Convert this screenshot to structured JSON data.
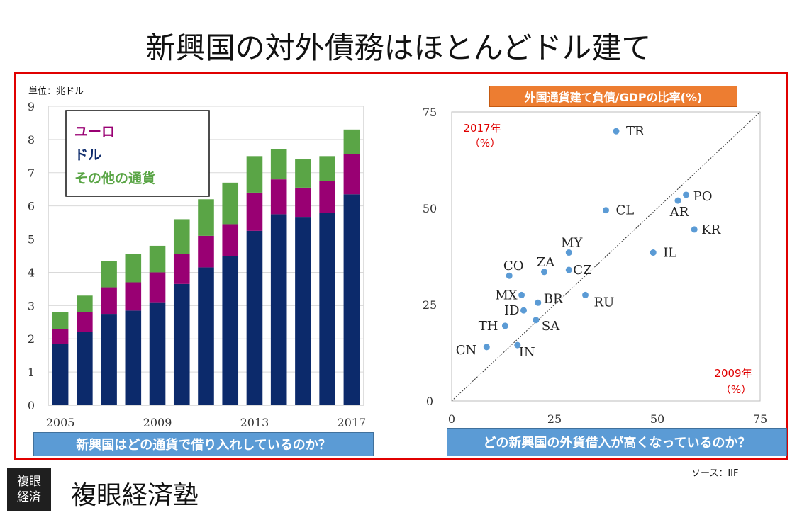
{
  "title": "新興国の対外債務はほとんどドル建て",
  "unit_label": "単位：兆ドル",
  "source": "ソース：IIF",
  "logo": {
    "box_line1": "複眼",
    "box_line2": "経済",
    "text": "複眼経済塾"
  },
  "colors": {
    "frame": "#e00000",
    "euro": "#990073",
    "dollar": "#0c2a6b",
    "other": "#5aa546",
    "point": "#5b9bd5",
    "question_box": "#5b9bd5",
    "ratio_box": "#ed7d31"
  },
  "chart_data": [
    {
      "type": "bar",
      "stacked": true,
      "categories": [
        "2005",
        "2006",
        "2007",
        "2008",
        "2009",
        "2010",
        "2011",
        "2012",
        "2013",
        "2014",
        "2015",
        "2016",
        "2017"
      ],
      "x_tick_labels": [
        "2005",
        "2009",
        "2013",
        "2017"
      ],
      "ylim": [
        0,
        9
      ],
      "y_ticks": [
        0,
        1,
        2,
        3,
        4,
        5,
        6,
        7,
        8,
        9
      ],
      "legend": [
        "ユーロ",
        "ドル",
        "その他の通貨"
      ],
      "legend_position": "top-left",
      "series": [
        {
          "name": "ドル",
          "values": [
            1.85,
            2.2,
            2.75,
            2.85,
            3.1,
            3.65,
            4.15,
            4.5,
            5.25,
            5.75,
            5.65,
            5.8,
            6.35
          ]
        },
        {
          "name": "ユーロ",
          "values": [
            0.45,
            0.6,
            0.8,
            0.85,
            0.9,
            0.9,
            0.95,
            0.95,
            1.15,
            1.05,
            0.9,
            0.95,
            1.2
          ]
        },
        {
          "name": "その他の通貨",
          "values": [
            0.5,
            0.5,
            0.8,
            0.85,
            0.8,
            1.05,
            1.1,
            1.25,
            1.1,
            0.9,
            0.85,
            0.75,
            0.75
          ]
        }
      ],
      "caption": "新興国はどの通貨で借り入れしているのか？"
    },
    {
      "type": "scatter",
      "title": "外国通貨建て負債/GDPの比率(%)",
      "xlabel": "2009年（%）",
      "ylabel": "2017年（%）",
      "xlim": [
        0,
        75
      ],
      "ylim": [
        0,
        75
      ],
      "x_ticks": [
        0,
        25,
        50,
        75
      ],
      "y_ticks": [
        0,
        25,
        50,
        75
      ],
      "diagonal": true,
      "points": [
        {
          "label": "TR",
          "x": 40,
          "y": 70
        },
        {
          "label": "PO",
          "x": 57,
          "y": 53.5
        },
        {
          "label": "AR",
          "x": 55,
          "y": 52
        },
        {
          "label": "CL",
          "x": 37.5,
          "y": 49.5
        },
        {
          "label": "KR",
          "x": 59,
          "y": 44.5
        },
        {
          "label": "MY",
          "x": 28.5,
          "y": 38.5
        },
        {
          "label": "IL",
          "x": 49,
          "y": 38.5
        },
        {
          "label": "CO",
          "x": 14,
          "y": 32.5
        },
        {
          "label": "ZA",
          "x": 22.5,
          "y": 33.5
        },
        {
          "label": "CZ",
          "x": 28.5,
          "y": 34
        },
        {
          "label": "MX",
          "x": 17,
          "y": 27.5
        },
        {
          "label": "BR",
          "x": 21,
          "y": 25.5
        },
        {
          "label": "RU",
          "x": 32.5,
          "y": 27.5
        },
        {
          "label": "ID",
          "x": 17.5,
          "y": 23.5
        },
        {
          "label": "TH",
          "x": 13,
          "y": 19.5
        },
        {
          "label": "SA",
          "x": 20.5,
          "y": 21
        },
        {
          "label": "CN",
          "x": 8.5,
          "y": 14
        },
        {
          "label": "IN",
          "x": 16,
          "y": 14.5
        }
      ],
      "caption": "どの新興国の外貨借入が高くなっているのか？"
    }
  ]
}
